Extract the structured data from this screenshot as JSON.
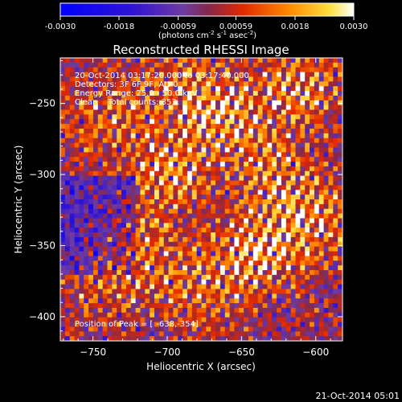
{
  "chart_data": {
    "type": "heatmap",
    "title": "Reconstructed RHESSI Image",
    "xlabel": "Heliocentric X (arcsec)",
    "ylabel": "Heliocentric Y (arcsec)",
    "xlim": [
      -772,
      -582
    ],
    "ylim": [
      -417,
      -218
    ],
    "x_ticks": [
      -750,
      -700,
      -650,
      -600
    ],
    "y_ticks": [
      -250,
      -300,
      -350,
      -400
    ],
    "colorbar": {
      "range": [
        -0.003,
        0.003
      ],
      "tick_values": [
        -0.003,
        -0.0018,
        -0.00059,
        0.00059,
        0.0018,
        0.003
      ],
      "tick_labels": [
        "-0.0030",
        "-0.0018",
        "-0.00059",
        "0.00059",
        "0.0018",
        "0.0030"
      ],
      "unit_label_parts": [
        "(photons cm",
        "-2",
        " s",
        "-1",
        " asec",
        "-2",
        ")"
      ]
    },
    "annotations": [
      "20-Oct-2014 03:17:20.000 to 03:17:40.000",
      "Detectors: 3F 6F 9F, Att 0",
      "Energy Range: 25.0 - 50.0 keV",
      "Clean    Total counts: 353."
    ],
    "peak": {
      "label": "Position of Peak = [",
      "value": "-638,-354]",
      "x": -638,
      "y": -354
    },
    "timestamp": "21-Oct-2014 05:01",
    "colors": {
      "low": "#0000ff",
      "mid_low": "#5a3cb4",
      "mid": "#8c1e3c",
      "high": "#ff5000",
      "max": "#ffffff"
    }
  }
}
